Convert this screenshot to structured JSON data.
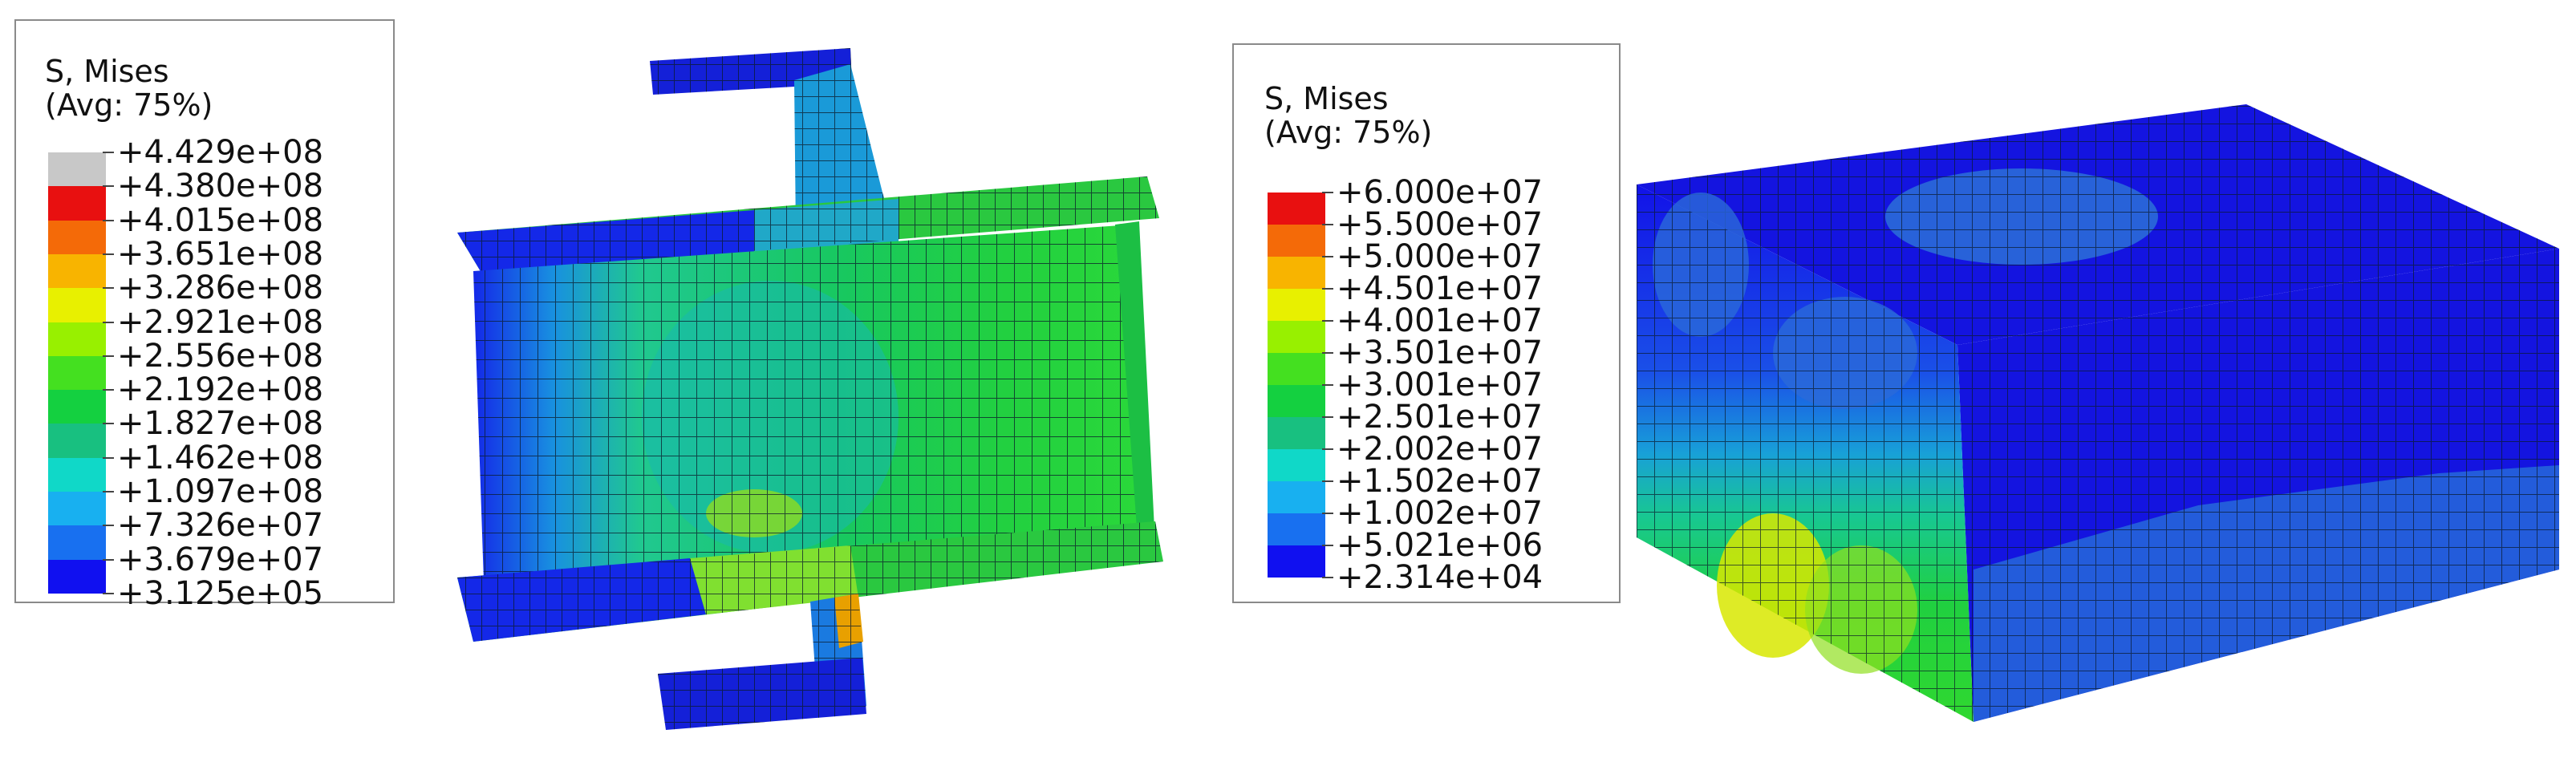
{
  "legend_left": {
    "title_line1": "S, Mises",
    "title_line2": "(Avg: 75%)",
    "values": [
      "+4.429e+08",
      "+4.380e+08",
      "+4.015e+08",
      "+3.651e+08",
      "+3.286e+08",
      "+2.921e+08",
      "+2.556e+08",
      "+2.192e+08",
      "+1.827e+08",
      "+1.462e+08",
      "+1.097e+08",
      "+7.326e+07",
      "+3.679e+07",
      "+3.125e+05"
    ],
    "colors": [
      "#c8c8c8",
      "#e81010",
      "#f46a08",
      "#f8b400",
      "#e8f000",
      "#98f000",
      "#44e020",
      "#14d040",
      "#18c080",
      "#10d8c8",
      "#18b0f0",
      "#1870f0",
      "#1010f0"
    ]
  },
  "legend_right": {
    "title_line1": "S, Mises",
    "title_line2": "(Avg: 75%)",
    "values": [
      "+6.000e+07",
      "+5.500e+07",
      "+5.000e+07",
      "+4.501e+07",
      "+4.001e+07",
      "+3.501e+07",
      "+3.001e+07",
      "+2.501e+07",
      "+2.002e+07",
      "+1.502e+07",
      "+1.002e+07",
      "+5.021e+06",
      "+2.314e+04"
    ],
    "colors": [
      "#e81010",
      "#f46a08",
      "#f8b400",
      "#e8f000",
      "#98f000",
      "#44e020",
      "#14d040",
      "#18c080",
      "#10d8c8",
      "#18b0f0",
      "#1870f0",
      "#1010f0"
    ]
  }
}
